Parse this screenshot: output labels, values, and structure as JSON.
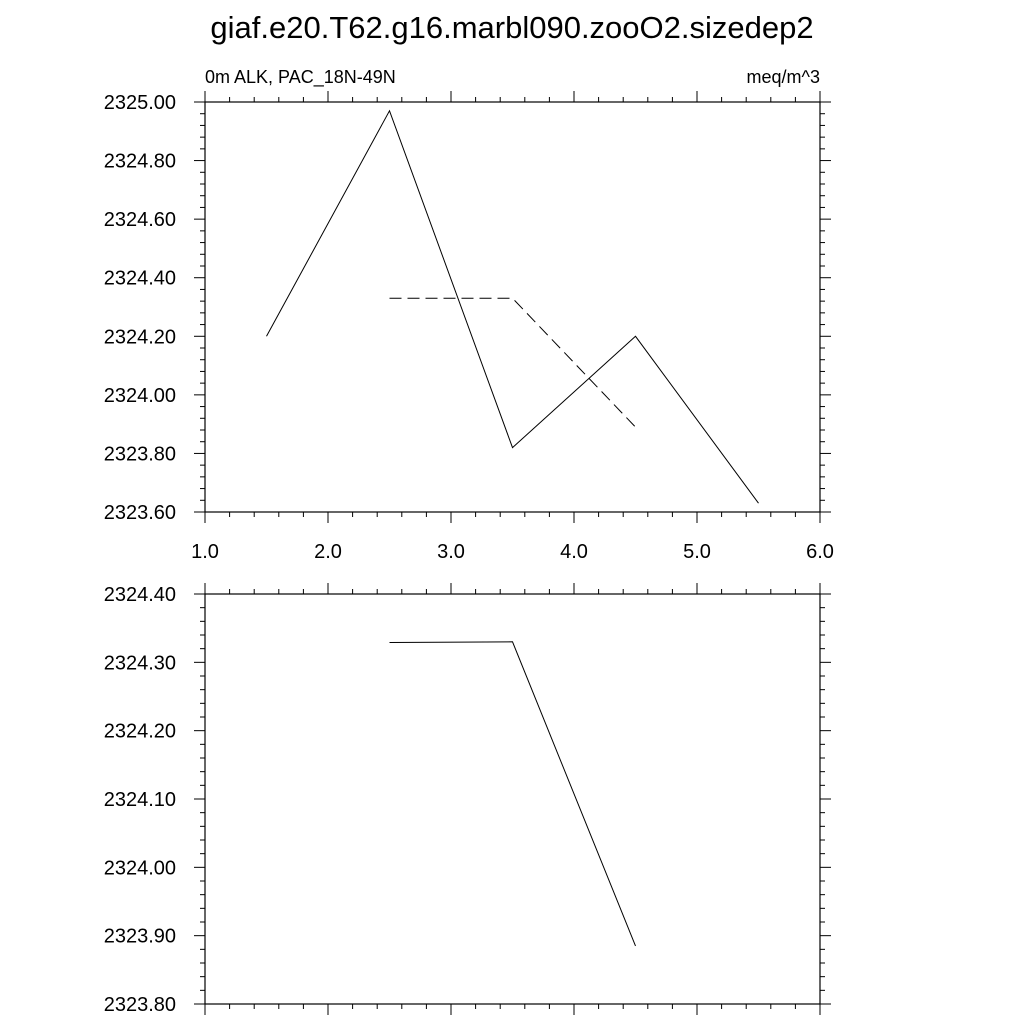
{
  "title": "giaf.e20.T62.g16.marbl090.zooO2.sizedep2",
  "chart_data": [
    {
      "type": "line",
      "left_label": "0m ALK, PAC_18N-49N",
      "right_label": "meq/m^3",
      "xlim": [
        1.0,
        6.0
      ],
      "ylim": [
        2323.6,
        2325.0
      ],
      "x_ticks": [
        "1.0",
        "2.0",
        "3.0",
        "4.0",
        "5.0",
        "6.0"
      ],
      "y_ticks": [
        "2325.00",
        "2324.80",
        "2324.60",
        "2324.40",
        "2324.20",
        "2324.00",
        "2323.80",
        "2323.60"
      ],
      "series": [
        {
          "style": "solid",
          "color": "#000000",
          "x": [
            1.5,
            2.5,
            3.5,
            4.5,
            5.5
          ],
          "y": [
            2324.2,
            2324.97,
            2323.82,
            2324.2,
            2323.63
          ]
        },
        {
          "style": "dashed",
          "color": "#000000",
          "x": [
            2.5,
            3.5,
            4.5
          ],
          "y": [
            2324.33,
            2324.33,
            2323.89
          ]
        }
      ]
    },
    {
      "type": "line",
      "xlim": [
        1.0,
        6.0
      ],
      "ylim": [
        2323.8,
        2324.4
      ],
      "y_ticks": [
        "2324.40",
        "2324.30",
        "2324.20",
        "2324.10",
        "2324.00",
        "2323.90",
        "2323.80"
      ],
      "series": [
        {
          "style": "solid",
          "color": "#000000",
          "x": [
            2.5,
            3.5,
            4.5
          ],
          "y": [
            2324.329,
            2324.33,
            2323.885
          ]
        }
      ]
    }
  ]
}
